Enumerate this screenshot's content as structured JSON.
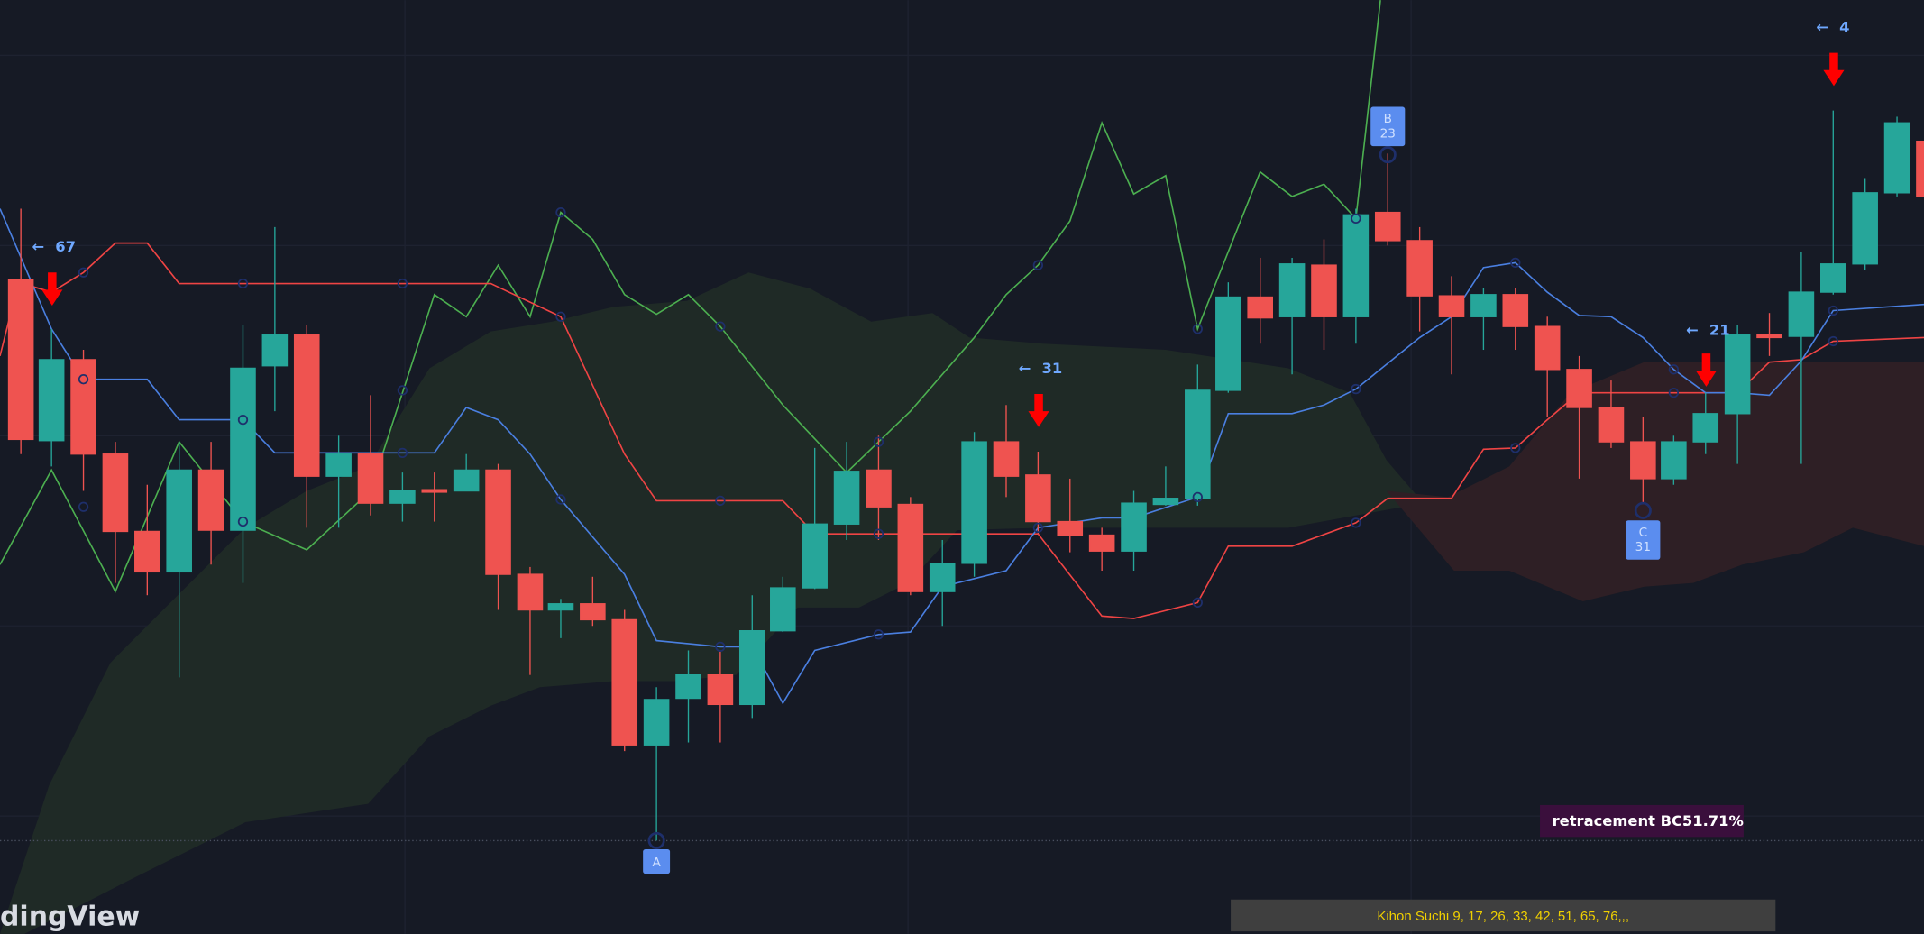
{
  "watermark": "dingView",
  "arrow_labels": [
    "67",
    "31",
    "21",
    "4"
  ],
  "pattern_points": [
    {
      "label": "A"
    },
    {
      "label": "B",
      "value": "23"
    },
    {
      "label": "C",
      "value": "31"
    }
  ],
  "retracement": {
    "label": "retracement BC:",
    "value": "51.71%"
  },
  "footer": "Kihon Suchi 9, 17, 26, 33, 42, 51, 65, 76,,,"
}
